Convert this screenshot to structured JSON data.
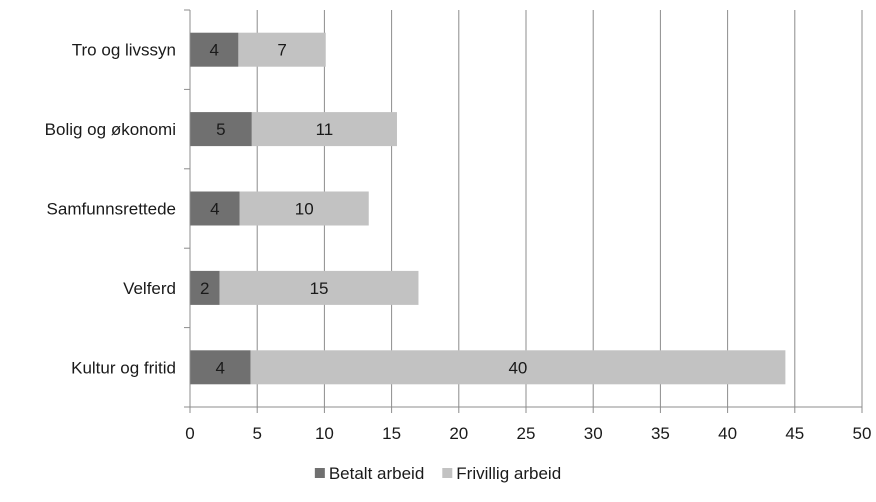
{
  "chart_data": {
    "type": "bar",
    "orientation": "horizontal",
    "stacked": true,
    "categories": [
      "Tro og livssyn",
      "Bolig og økonomi",
      "Samfunnsrettede",
      "Velferd",
      "Kultur og fritid"
    ],
    "series": [
      {
        "name": "Betalt arbeid",
        "values": [
          3.6,
          4.6,
          3.7,
          2.2,
          4.5
        ],
        "labels": [
          "4",
          "5",
          "4",
          "2",
          "4"
        ],
        "color": "#707070"
      },
      {
        "name": "Frivillig arbeid",
        "values": [
          6.5,
          10.8,
          9.6,
          14.8,
          39.8
        ],
        "labels": [
          "7",
          "11",
          "10",
          "15",
          "40"
        ],
        "color": "#c2c2c2"
      }
    ],
    "xlim": [
      0,
      50
    ],
    "xticks": [
      "0",
      "5",
      "10",
      "15",
      "20",
      "25",
      "30",
      "35",
      "40",
      "45",
      "50"
    ],
    "grid": true,
    "legend_position": "bottom",
    "title": "",
    "xlabel": "",
    "ylabel": ""
  }
}
